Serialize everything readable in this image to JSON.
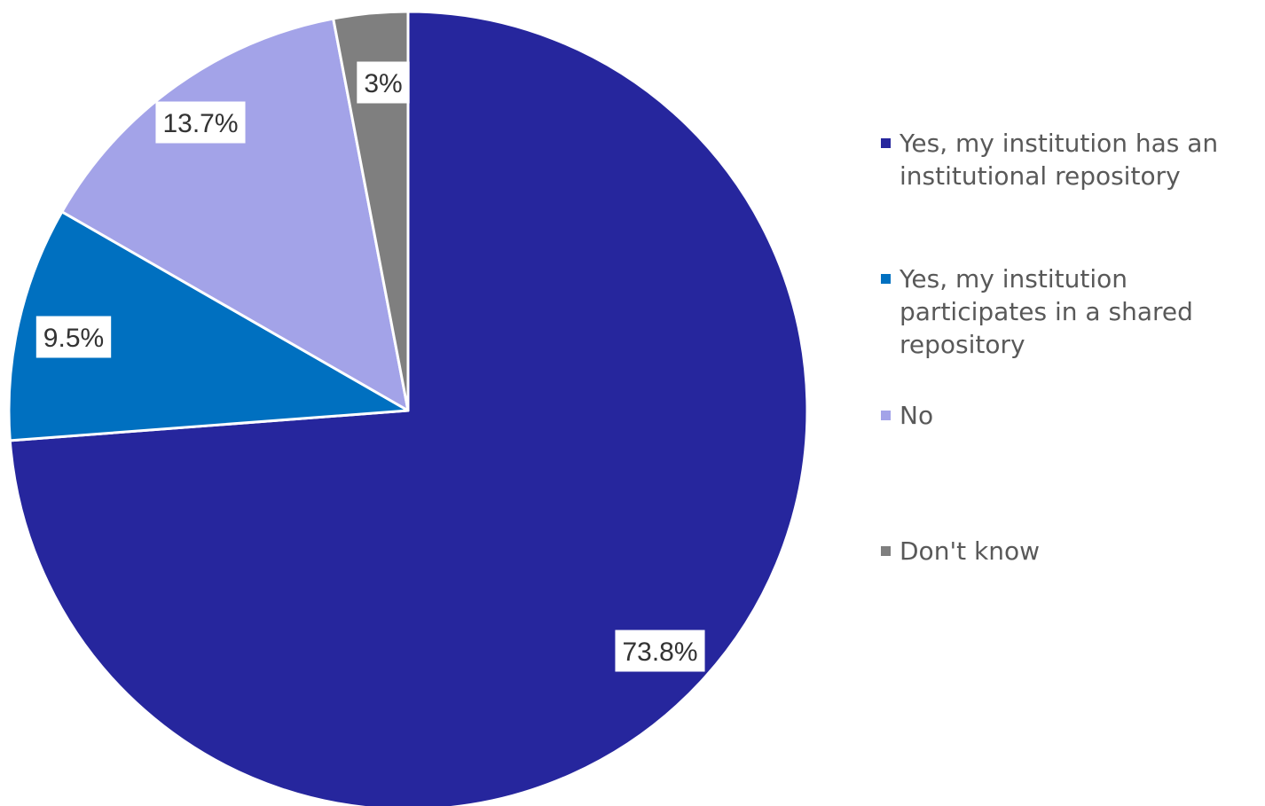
{
  "chart_data": {
    "type": "pie",
    "title": "",
    "slices": [
      {
        "label": "Yes, my institution has an institutional repository",
        "value": 73.8,
        "display": "73.8%",
        "color": "#26269D"
      },
      {
        "label": "Yes, my institution participates in a shared repository",
        "value": 9.5,
        "display": "9.5%",
        "color": "#0070C0"
      },
      {
        "label": "No",
        "value": 13.7,
        "display": "13.7%",
        "color": "#A3A3E8"
      },
      {
        "label": "Don't know",
        "value": 3,
        "display": "3%",
        "color": "#7F7F7F"
      }
    ],
    "legend_position": "right",
    "start_angle": "12 o'clock",
    "direction": "clockwise"
  },
  "legend": {
    "items": [
      {
        "label": "Yes, my institution has an institutional repository",
        "color": "#26269D"
      },
      {
        "label": "Yes, my institution participates in a shared repository",
        "color": "#0070C0"
      },
      {
        "label": "No",
        "color": "#A3A3E8"
      },
      {
        "label": "Don't know",
        "color": "#7F7F7F"
      }
    ]
  }
}
